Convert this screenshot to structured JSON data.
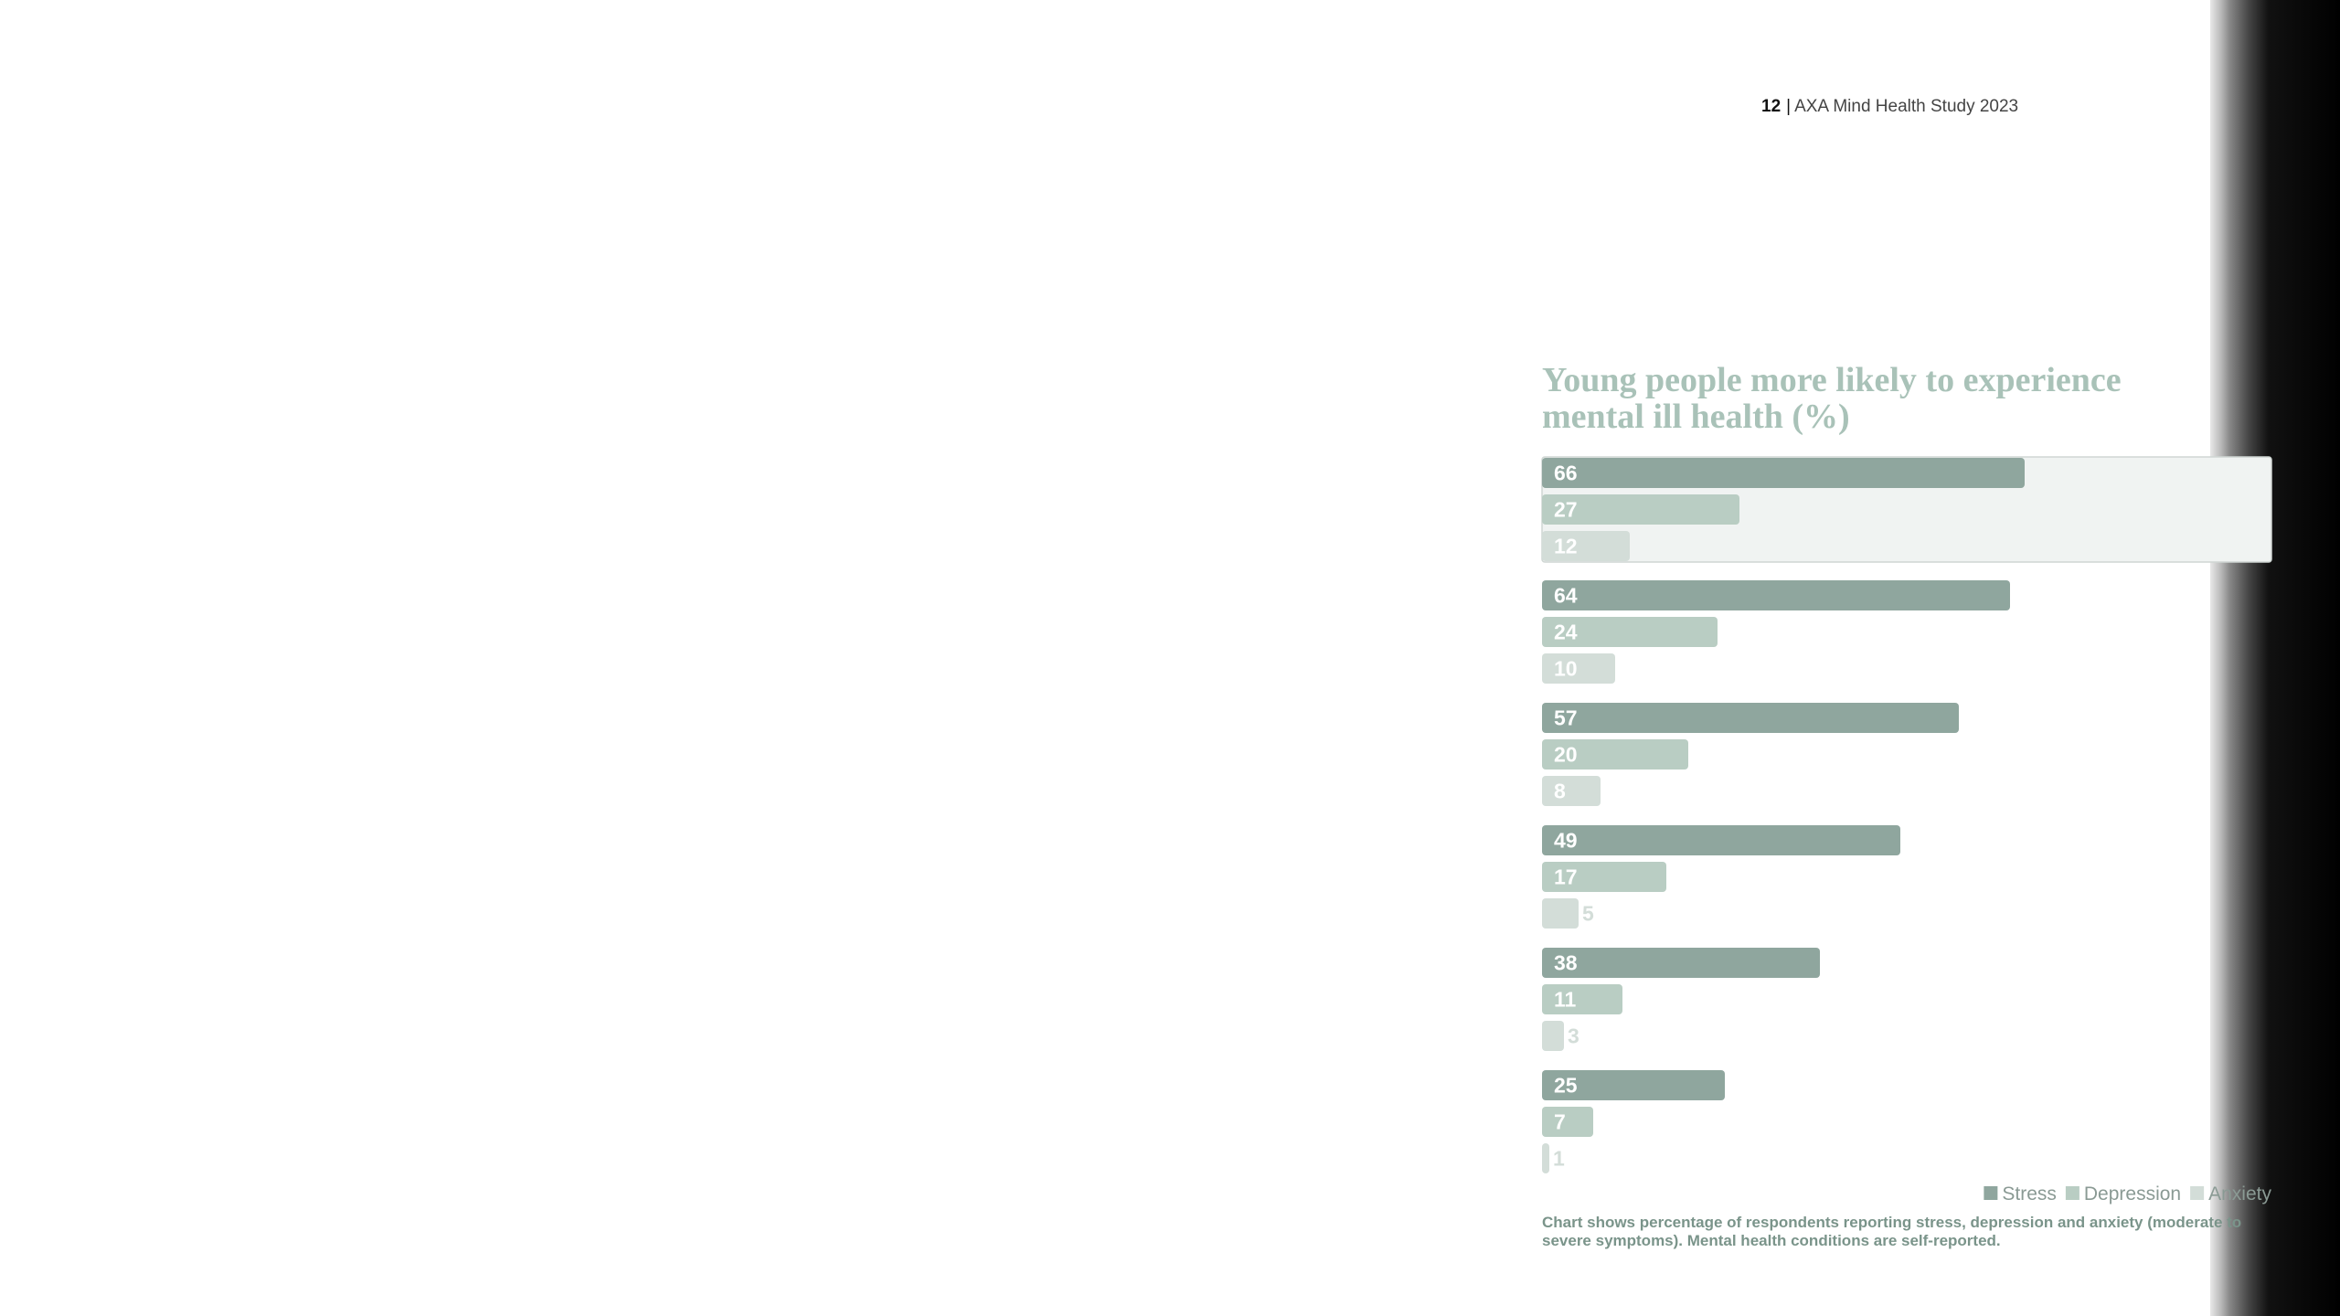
{
  "header": {
    "page_number": "12",
    "separator": "|",
    "publication": "AXA Mind Health Study 2023"
  },
  "chart_data": {
    "type": "bar",
    "orientation": "horizontal",
    "title": "Young people more likely to experience mental ill health (%)",
    "categories": [
      null,
      null,
      null,
      null,
      null,
      null
    ],
    "series": [
      {
        "name": "Stress",
        "color": "#8fa69e",
        "values": [
          66,
          64,
          57,
          49,
          38,
          25
        ]
      },
      {
        "name": "Depression",
        "color": "#b9cdc3",
        "values": [
          27,
          24,
          20,
          17,
          11,
          7
        ]
      },
      {
        "name": "Anxiety",
        "color": "#d3ddd8",
        "values": [
          12,
          10,
          8,
          5,
          3,
          1
        ]
      }
    ],
    "highlighted_group": 0,
    "legend": "bottom-right",
    "footnote": "Chart shows percentage of respondents reporting stress, depression and anxiety (moderate to severe symptoms). Mental health conditions are self-reported."
  }
}
